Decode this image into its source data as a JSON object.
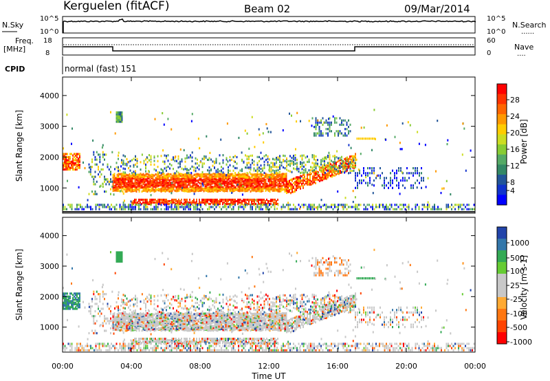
{
  "header": {
    "station": "Kerguelen (fitACF)",
    "beam": "Beam 02",
    "date": "09/Mar/2014"
  },
  "status_panels": {
    "nsky": {
      "left_label": "N.Sky",
      "left_ticks": [
        "10^5",
        "10^0"
      ],
      "right_ticks": [
        "10^5",
        "10^0"
      ],
      "right_label": "N.Search",
      "right_legend": "......"
    },
    "freq": {
      "left_label_1": "Freq.",
      "left_label_2": "[MHz]",
      "left_ticks": [
        "18",
        "8"
      ],
      "right_ticks": [
        "60",
        "0"
      ],
      "right_label": "Nave",
      "right_legend": "...."
    },
    "cpid": {
      "label": "CPID",
      "mode": "normal (fast) 151"
    }
  },
  "time_axis": {
    "label": "Time UT",
    "ticks": [
      "00:00",
      "04:00",
      "08:00",
      "12:00",
      "16:00",
      "20:00",
      "00:00"
    ]
  },
  "chart_data": [
    {
      "type": "heatmap",
      "name": "power",
      "ylabel": "Slant Range [km]",
      "yticks": [
        "4000",
        "3000",
        "2000",
        "1000"
      ],
      "yrange": [
        180,
        4600
      ],
      "xrange_hours": [
        0,
        24
      ],
      "colorbar": {
        "label": "Power [dB]",
        "ticks": [
          "28",
          "24",
          "20",
          "16",
          "12",
          "8",
          "4"
        ],
        "colors": [
          "#ff0000",
          "#ff3300",
          "#ff6600",
          "#ff9900",
          "#ffcc00",
          "#ccdd22",
          "#88cc33",
          "#55aa66",
          "#338866",
          "#225599",
          "#1133cc",
          "#0000ff"
        ]
      }
    },
    {
      "type": "heatmap",
      "name": "velocity",
      "ylabel": "Slant Range [km]",
      "yticks": [
        "4000",
        "3000",
        "2000",
        "1000"
      ],
      "yrange": [
        180,
        4600
      ],
      "xrange_hours": [
        0,
        24
      ],
      "colorbar": {
        "label": "Velocity [m s-1]",
        "ticks": [
          "1000",
          "500",
          "100",
          "25",
          "-25",
          "-100",
          "-500",
          "-1000"
        ],
        "colors": [
          "#2244aa",
          "#3377aa",
          "#33aa55",
          "#66cc33",
          "#c8c8c8",
          "#c8c8c8",
          "#ffaa33",
          "#ff7711",
          "#ff4400",
          "#ff0000"
        ]
      }
    }
  ]
}
